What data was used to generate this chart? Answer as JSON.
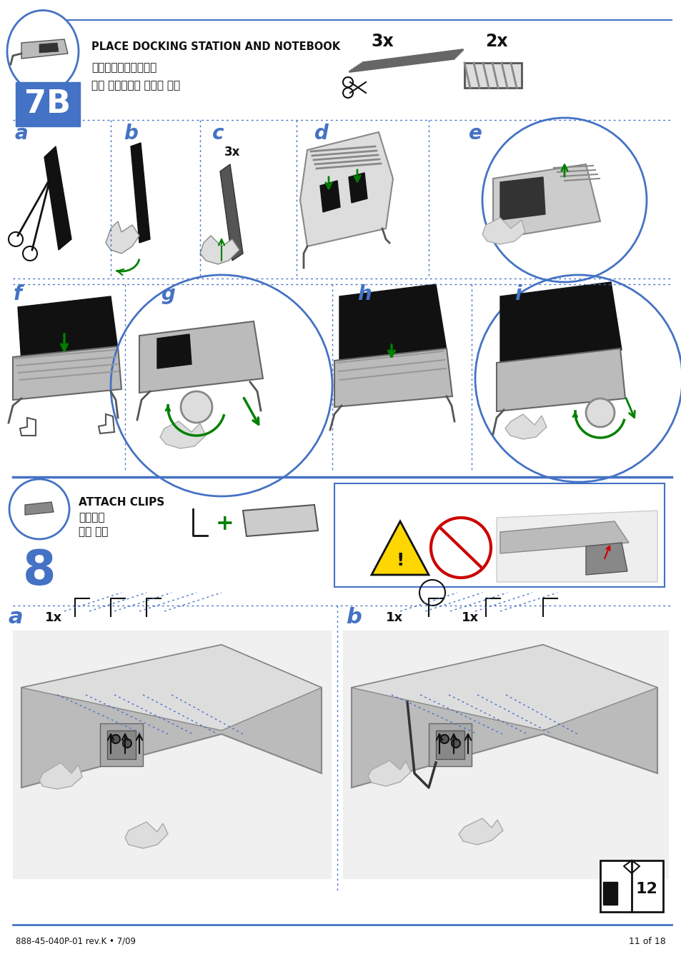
{
  "bg_color": "#ffffff",
  "page_width": 9.54,
  "page_height": 13.5,
  "section7b": {
    "title": "PLACE DOCKING STATION AND NOTEBOOK",
    "subtitle1": "放置坑站和笔记本电脑",
    "subtitle2": "도킹 스테이션과 노트북 배치",
    "number": "7B",
    "count_3x_top": "3x",
    "count_2x_top": "2x"
  },
  "section8": {
    "title": "ATTACH CLIPS",
    "subtitle1": "安装夹子",
    "subtitle2": "클립 부착",
    "number": "8"
  },
  "footer": {
    "left": "888-45-040P-01 rev.K • 7/09",
    "right": "11 of 18"
  },
  "blue": "#4472c4",
  "black": "#111111",
  "gray": "#888888",
  "lightgray": "#cccccc",
  "green": "#008000",
  "yellow": "#FFD700",
  "red": "#CC0000",
  "white": "#ffffff"
}
